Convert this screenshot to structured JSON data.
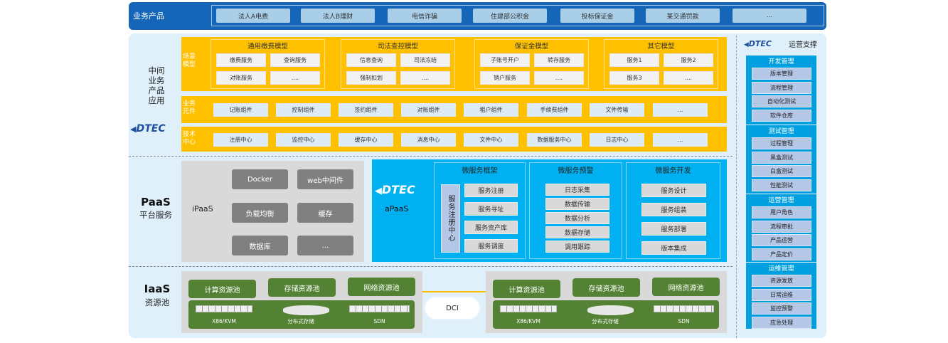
{
  "products": {
    "label": "业务产品",
    "items": [
      "法人A电费",
      "法人B理财",
      "电信诈骗",
      "住建部公积金",
      "投标保证金",
      "某交通罚款",
      "..."
    ]
  },
  "middle": {
    "label_lines": [
      "中间",
      "业务",
      "产品",
      "应用"
    ],
    "logo": "DTEC",
    "scene": {
      "label": "场景模型",
      "groups": [
        {
          "title": "通用缴费模型",
          "items": [
            "缴费服务",
            "查询服务",
            "对账服务",
            "...."
          ]
        },
        {
          "title": "司法查控模型",
          "items": [
            "信息查询",
            "司法冻结",
            "强制扣划",
            "...."
          ]
        },
        {
          "title": "保证金模型",
          "items": [
            "子账号开户",
            "转存服务",
            "销户服务",
            "...."
          ]
        },
        {
          "title": "其它模型",
          "items": [
            "服务1",
            "服务2",
            "服务3",
            "...."
          ]
        }
      ]
    },
    "components": {
      "label": "业务元件",
      "items": [
        "记账组件",
        "控制组件",
        "签约组件",
        "对账组件",
        "租户组件",
        "手续费组件",
        "文件传输",
        "..."
      ]
    },
    "tech": {
      "label": "技术中心",
      "items": [
        "注册中心",
        "监控中心",
        "缓存中心",
        "消息中心",
        "文件中心",
        "数据服务中心",
        "日志中心",
        "..."
      ]
    }
  },
  "paas": {
    "title": "PaaS",
    "subtitle": "平台服务",
    "ipaas": {
      "label": "iPaaS",
      "items": [
        "Docker",
        "web中间件",
        "负载均衡",
        "缓存",
        "数据库",
        "..."
      ]
    },
    "apaas": {
      "logo": "DTEC",
      "label": "aPaaS",
      "registry": "服务注册中心",
      "groups": [
        {
          "title": "微服务框架",
          "items": [
            "服务注册",
            "服务寻址",
            "服务资产库",
            "服务调度"
          ]
        },
        {
          "title": "微服务预警",
          "items": [
            "日志采集",
            "数据传输",
            "数据分析",
            "数据存储",
            "调用跟踪"
          ]
        },
        {
          "title": "微服务开发",
          "items": [
            "服务设计",
            "服务组装",
            "服务部署",
            "版本集成"
          ]
        }
      ]
    }
  },
  "iaas": {
    "title": "IaaS",
    "subtitle": "资源池",
    "dci": "DCI",
    "pools": [
      "计算资源池",
      "存储资源池",
      "网络资源池"
    ],
    "hardware": [
      "X86/KVM",
      "分布式存储",
      "SDN"
    ]
  },
  "ops": {
    "logo": "DTEC",
    "title": "运营支撑",
    "groups": [
      {
        "title": "开发管理",
        "items": [
          "版本管理",
          "流程管理",
          "自动化测试",
          "软件仓库"
        ]
      },
      {
        "title": "测试管理",
        "items": [
          "过程管理",
          "黑盒测试",
          "白盒测试",
          "性能测试"
        ]
      },
      {
        "title": "运营管理",
        "items": [
          "用户角色",
          "流程审批",
          "产品运营",
          "产品定价"
        ]
      },
      {
        "title": "运维管理",
        "items": [
          "资源发放",
          "日常运维",
          "监控预警",
          "应急处理"
        ]
      }
    ]
  },
  "colors": {
    "top": "#1565b8",
    "panel": "#dff0fb",
    "yellow": "#ffc000",
    "apaas": "#00b0f0",
    "green": "#548235",
    "ipaas": "#d9d9d9"
  }
}
